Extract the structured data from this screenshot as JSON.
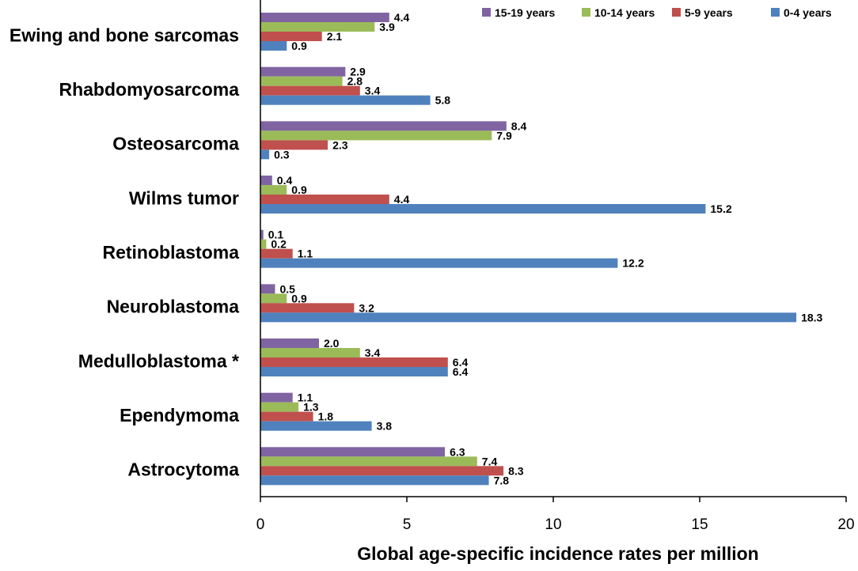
{
  "chart_data": {
    "type": "bar",
    "orientation": "horizontal",
    "title": "",
    "xlabel": "Global age-specific incidence rates per million",
    "ylabel": "",
    "xlim": [
      0,
      20
    ],
    "xticks": [
      0,
      5,
      10,
      15,
      20
    ],
    "grid": false,
    "legend_position": "top-right",
    "categories": [
      "Ewing and bone sarcomas",
      "Rhabdomyosarcoma",
      "Osteosarcoma",
      "Wilms tumor",
      "Retinoblastoma",
      "Neuroblastoma",
      "Medulloblastoma *",
      "Ependymoma",
      "Astrocytoma"
    ],
    "series": [
      {
        "name": "15-19 years",
        "color": "#8064a2",
        "values": [
          4.4,
          2.9,
          8.4,
          0.4,
          0.1,
          0.5,
          2.0,
          1.1,
          6.3
        ],
        "labels": [
          "4.4",
          "2.9",
          "8.4",
          "0.4",
          "0.1",
          "0.5",
          "2.0",
          "1.1",
          "6.3"
        ]
      },
      {
        "name": "10-14 years",
        "color": "#9bbb59",
        "values": [
          3.9,
          2.8,
          7.9,
          0.9,
          0.2,
          0.9,
          3.4,
          1.3,
          7.4
        ],
        "labels": [
          "3.9",
          "2.8",
          "7.9",
          "0.9",
          "0.2",
          "0.9",
          "3.4",
          "1.3",
          "7.4"
        ]
      },
      {
        "name": "5-9 years",
        "color": "#c0504d",
        "values": [
          2.1,
          3.4,
          2.3,
          4.4,
          1.1,
          3.2,
          6.4,
          1.8,
          8.3
        ],
        "labels": [
          "2.1",
          "3.4",
          "2.3",
          "4.4",
          "1.1",
          "3.2",
          "6.4",
          "1.8",
          "8.3"
        ]
      },
      {
        "name": "0-4 years",
        "color": "#4f81bd",
        "values": [
          0.9,
          5.8,
          0.3,
          15.2,
          12.2,
          18.3,
          6.4,
          3.8,
          7.8
        ],
        "labels": [
          "0.9",
          "5.8",
          "0.3",
          "15.2",
          "12.2",
          "18.3",
          "6.4",
          "3.8",
          "7.8"
        ]
      }
    ]
  }
}
